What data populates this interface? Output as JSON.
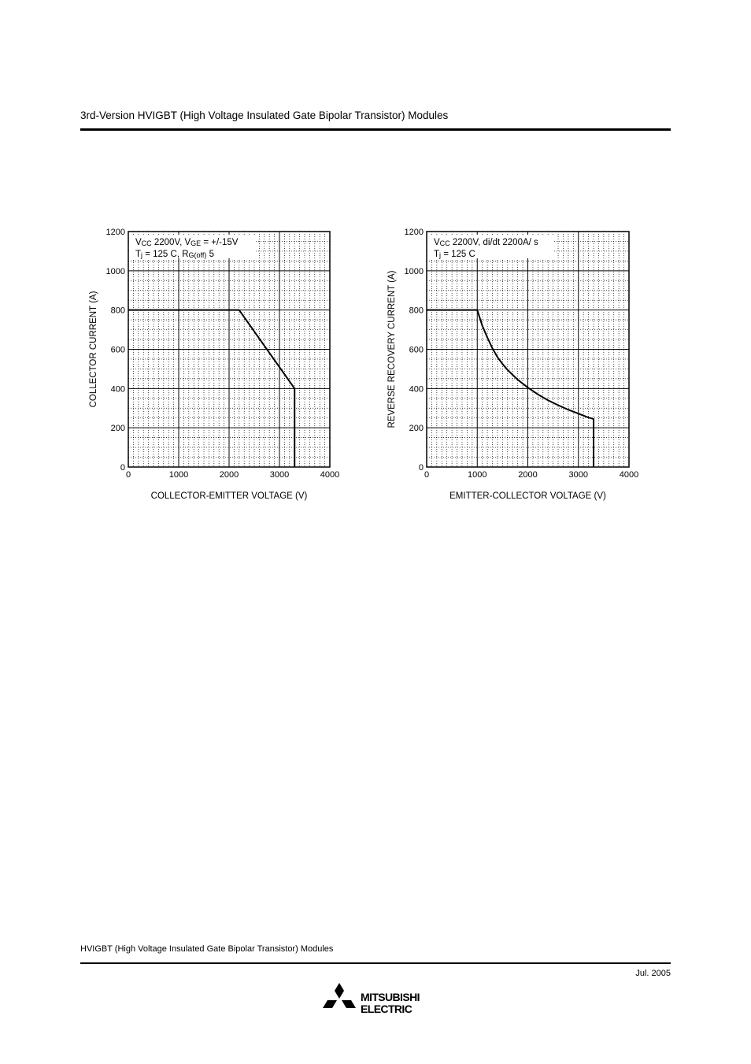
{
  "header": {
    "title": "3rd-Version HVIGBT (High Voltage Insulated Gate Bipolar Transistor) Modules"
  },
  "footer": {
    "title": "HVIGBT (High Voltage Insulated Gate Bipolar Transistor) Modules",
    "date": "Jul.  2005"
  },
  "logo": {
    "line1": "MITSUBISHI",
    "line2": "ELECTRIC"
  },
  "chart_data": [
    {
      "type": "line",
      "title": "",
      "xlabel": "COLLECTOR-EMITTER VOLTAGE (V)",
      "ylabel": "COLLECTOR CURRENT (A)",
      "xlim": [
        0,
        4000
      ],
      "ylim": [
        0,
        1200
      ],
      "xticks": [
        0,
        1000,
        2000,
        3000,
        4000
      ],
      "yticks": [
        0,
        200,
        400,
        600,
        800,
        1000,
        1200
      ],
      "grid": true,
      "annotations": [
        {
          "segments": [
            {
              "text": "V",
              "sub": false
            },
            {
              "text": "CC",
              "sub": true
            },
            {
              "text": "    2200V, V",
              "sub": false
            },
            {
              "text": "GE",
              "sub": true
            },
            {
              "text": " = +/-15V",
              "sub": false
            }
          ]
        },
        {
          "segments": [
            {
              "text": "T",
              "sub": false
            },
            {
              "text": "j",
              "sub": true
            },
            {
              "text": " = 125  C, R",
              "sub": false
            },
            {
              "text": "G(off)",
              "sub": true
            },
            {
              "text": "    5",
              "sub": false
            }
          ]
        }
      ],
      "series": [
        {
          "x": [
            0,
            2200,
            3300,
            3300
          ],
          "y": [
            800,
            800,
            400,
            0
          ]
        }
      ]
    },
    {
      "type": "line",
      "title": "",
      "xlabel": "EMITTER-COLLECTOR VOLTAGE (V)",
      "ylabel": "REVERSE RECOVERY CURRENT (A)",
      "xlim": [
        0,
        4000
      ],
      "ylim": [
        0,
        1200
      ],
      "xticks": [
        0,
        1000,
        2000,
        3000,
        4000
      ],
      "yticks": [
        0,
        200,
        400,
        600,
        800,
        1000,
        1200
      ],
      "grid": true,
      "annotations": [
        {
          "segments": [
            {
              "text": "V",
              "sub": false
            },
            {
              "text": "CC",
              "sub": true
            },
            {
              "text": "    2200V, di/dt    2200A/  s",
              "sub": false
            }
          ]
        },
        {
          "segments": [
            {
              "text": "T",
              "sub": false
            },
            {
              "text": "j",
              "sub": true
            },
            {
              "text": " = 125  C",
              "sub": false
            }
          ]
        }
      ],
      "series": [
        {
          "x": [
            0,
            1000,
            1100,
            1200,
            1300,
            1400,
            1500,
            1600,
            1800,
            2000,
            2200,
            2400,
            2600,
            2800,
            3000,
            3200,
            3300,
            3300
          ],
          "y": [
            800,
            800,
            720,
            660,
            605,
            560,
            525,
            495,
            445,
            405,
            370,
            340,
            315,
            292,
            272,
            252,
            245,
            0
          ]
        }
      ]
    }
  ]
}
